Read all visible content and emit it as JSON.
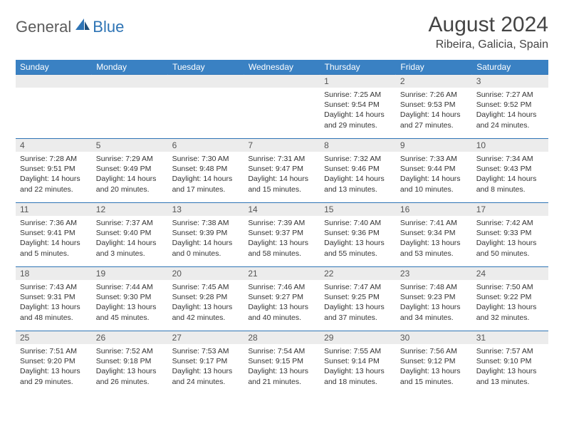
{
  "brand": {
    "part1": "General",
    "part2": "Blue"
  },
  "title": "August 2024",
  "location": "Ribeira, Galicia, Spain",
  "colors": {
    "header_bg": "#3a81c3",
    "header_text": "#ffffff",
    "border": "#2e74b5",
    "daynum_bg": "#ececec",
    "text": "#333333",
    "logo_gray": "#5c5c5c",
    "logo_blue": "#2e74b5"
  },
  "weekdays": [
    "Sunday",
    "Monday",
    "Tuesday",
    "Wednesday",
    "Thursday",
    "Friday",
    "Saturday"
  ],
  "weeks": [
    [
      null,
      null,
      null,
      null,
      {
        "n": "1",
        "sr": "Sunrise: 7:25 AM",
        "ss": "Sunset: 9:54 PM",
        "d1": "Daylight: 14 hours",
        "d2": "and 29 minutes."
      },
      {
        "n": "2",
        "sr": "Sunrise: 7:26 AM",
        "ss": "Sunset: 9:53 PM",
        "d1": "Daylight: 14 hours",
        "d2": "and 27 minutes."
      },
      {
        "n": "3",
        "sr": "Sunrise: 7:27 AM",
        "ss": "Sunset: 9:52 PM",
        "d1": "Daylight: 14 hours",
        "d2": "and 24 minutes."
      }
    ],
    [
      {
        "n": "4",
        "sr": "Sunrise: 7:28 AM",
        "ss": "Sunset: 9:51 PM",
        "d1": "Daylight: 14 hours",
        "d2": "and 22 minutes."
      },
      {
        "n": "5",
        "sr": "Sunrise: 7:29 AM",
        "ss": "Sunset: 9:49 PM",
        "d1": "Daylight: 14 hours",
        "d2": "and 20 minutes."
      },
      {
        "n": "6",
        "sr": "Sunrise: 7:30 AM",
        "ss": "Sunset: 9:48 PM",
        "d1": "Daylight: 14 hours",
        "d2": "and 17 minutes."
      },
      {
        "n": "7",
        "sr": "Sunrise: 7:31 AM",
        "ss": "Sunset: 9:47 PM",
        "d1": "Daylight: 14 hours",
        "d2": "and 15 minutes."
      },
      {
        "n": "8",
        "sr": "Sunrise: 7:32 AM",
        "ss": "Sunset: 9:46 PM",
        "d1": "Daylight: 14 hours",
        "d2": "and 13 minutes."
      },
      {
        "n": "9",
        "sr": "Sunrise: 7:33 AM",
        "ss": "Sunset: 9:44 PM",
        "d1": "Daylight: 14 hours",
        "d2": "and 10 minutes."
      },
      {
        "n": "10",
        "sr": "Sunrise: 7:34 AM",
        "ss": "Sunset: 9:43 PM",
        "d1": "Daylight: 14 hours",
        "d2": "and 8 minutes."
      }
    ],
    [
      {
        "n": "11",
        "sr": "Sunrise: 7:36 AM",
        "ss": "Sunset: 9:41 PM",
        "d1": "Daylight: 14 hours",
        "d2": "and 5 minutes."
      },
      {
        "n": "12",
        "sr": "Sunrise: 7:37 AM",
        "ss": "Sunset: 9:40 PM",
        "d1": "Daylight: 14 hours",
        "d2": "and 3 minutes."
      },
      {
        "n": "13",
        "sr": "Sunrise: 7:38 AM",
        "ss": "Sunset: 9:39 PM",
        "d1": "Daylight: 14 hours",
        "d2": "and 0 minutes."
      },
      {
        "n": "14",
        "sr": "Sunrise: 7:39 AM",
        "ss": "Sunset: 9:37 PM",
        "d1": "Daylight: 13 hours",
        "d2": "and 58 minutes."
      },
      {
        "n": "15",
        "sr": "Sunrise: 7:40 AM",
        "ss": "Sunset: 9:36 PM",
        "d1": "Daylight: 13 hours",
        "d2": "and 55 minutes."
      },
      {
        "n": "16",
        "sr": "Sunrise: 7:41 AM",
        "ss": "Sunset: 9:34 PM",
        "d1": "Daylight: 13 hours",
        "d2": "and 53 minutes."
      },
      {
        "n": "17",
        "sr": "Sunrise: 7:42 AM",
        "ss": "Sunset: 9:33 PM",
        "d1": "Daylight: 13 hours",
        "d2": "and 50 minutes."
      }
    ],
    [
      {
        "n": "18",
        "sr": "Sunrise: 7:43 AM",
        "ss": "Sunset: 9:31 PM",
        "d1": "Daylight: 13 hours",
        "d2": "and 48 minutes."
      },
      {
        "n": "19",
        "sr": "Sunrise: 7:44 AM",
        "ss": "Sunset: 9:30 PM",
        "d1": "Daylight: 13 hours",
        "d2": "and 45 minutes."
      },
      {
        "n": "20",
        "sr": "Sunrise: 7:45 AM",
        "ss": "Sunset: 9:28 PM",
        "d1": "Daylight: 13 hours",
        "d2": "and 42 minutes."
      },
      {
        "n": "21",
        "sr": "Sunrise: 7:46 AM",
        "ss": "Sunset: 9:27 PM",
        "d1": "Daylight: 13 hours",
        "d2": "and 40 minutes."
      },
      {
        "n": "22",
        "sr": "Sunrise: 7:47 AM",
        "ss": "Sunset: 9:25 PM",
        "d1": "Daylight: 13 hours",
        "d2": "and 37 minutes."
      },
      {
        "n": "23",
        "sr": "Sunrise: 7:48 AM",
        "ss": "Sunset: 9:23 PM",
        "d1": "Daylight: 13 hours",
        "d2": "and 34 minutes."
      },
      {
        "n": "24",
        "sr": "Sunrise: 7:50 AM",
        "ss": "Sunset: 9:22 PM",
        "d1": "Daylight: 13 hours",
        "d2": "and 32 minutes."
      }
    ],
    [
      {
        "n": "25",
        "sr": "Sunrise: 7:51 AM",
        "ss": "Sunset: 9:20 PM",
        "d1": "Daylight: 13 hours",
        "d2": "and 29 minutes."
      },
      {
        "n": "26",
        "sr": "Sunrise: 7:52 AM",
        "ss": "Sunset: 9:18 PM",
        "d1": "Daylight: 13 hours",
        "d2": "and 26 minutes."
      },
      {
        "n": "27",
        "sr": "Sunrise: 7:53 AM",
        "ss": "Sunset: 9:17 PM",
        "d1": "Daylight: 13 hours",
        "d2": "and 24 minutes."
      },
      {
        "n": "28",
        "sr": "Sunrise: 7:54 AM",
        "ss": "Sunset: 9:15 PM",
        "d1": "Daylight: 13 hours",
        "d2": "and 21 minutes."
      },
      {
        "n": "29",
        "sr": "Sunrise: 7:55 AM",
        "ss": "Sunset: 9:14 PM",
        "d1": "Daylight: 13 hours",
        "d2": "and 18 minutes."
      },
      {
        "n": "30",
        "sr": "Sunrise: 7:56 AM",
        "ss": "Sunset: 9:12 PM",
        "d1": "Daylight: 13 hours",
        "d2": "and 15 minutes."
      },
      {
        "n": "31",
        "sr": "Sunrise: 7:57 AM",
        "ss": "Sunset: 9:10 PM",
        "d1": "Daylight: 13 hours",
        "d2": "and 13 minutes."
      }
    ]
  ]
}
